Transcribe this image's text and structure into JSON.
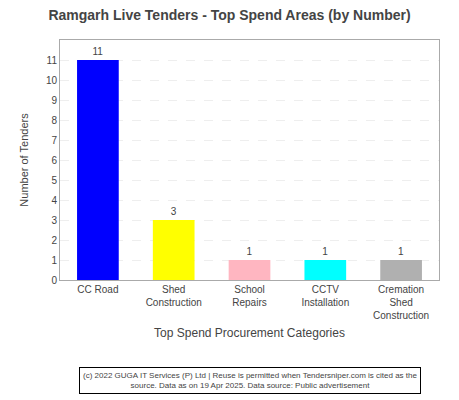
{
  "chart_data": {
    "type": "bar",
    "title": "Ramgarh Live Tenders - Top Spend Areas (by Number)",
    "categories": [
      "CC Road",
      "Shed\nConstruction",
      "School\nRepairs",
      "CCTV\nInstallation",
      "Cremation\nShed\nConstruction"
    ],
    "values": [
      11,
      3,
      1,
      1,
      1
    ],
    "colors": [
      "#0000ff",
      "#ffff00",
      "#ffb6c1",
      "#00ffff",
      "#b0b0b0"
    ],
    "xlabel": "Top Spend Procurement Categories",
    "ylabel": "Number of Tenders",
    "ylim": [
      0,
      12
    ],
    "yticks": [
      0,
      1,
      2,
      3,
      4,
      5,
      6,
      7,
      8,
      9,
      10,
      11
    ],
    "grid": true,
    "data_labels": true,
    "annotations": [
      "(c) 2022 GUGA IT Services (P) Ltd | Reuse is permitted when Tendersniper.com is cited as the\nsource. Data as on 19 Apr 2025. Data source: Public advertisement"
    ]
  }
}
